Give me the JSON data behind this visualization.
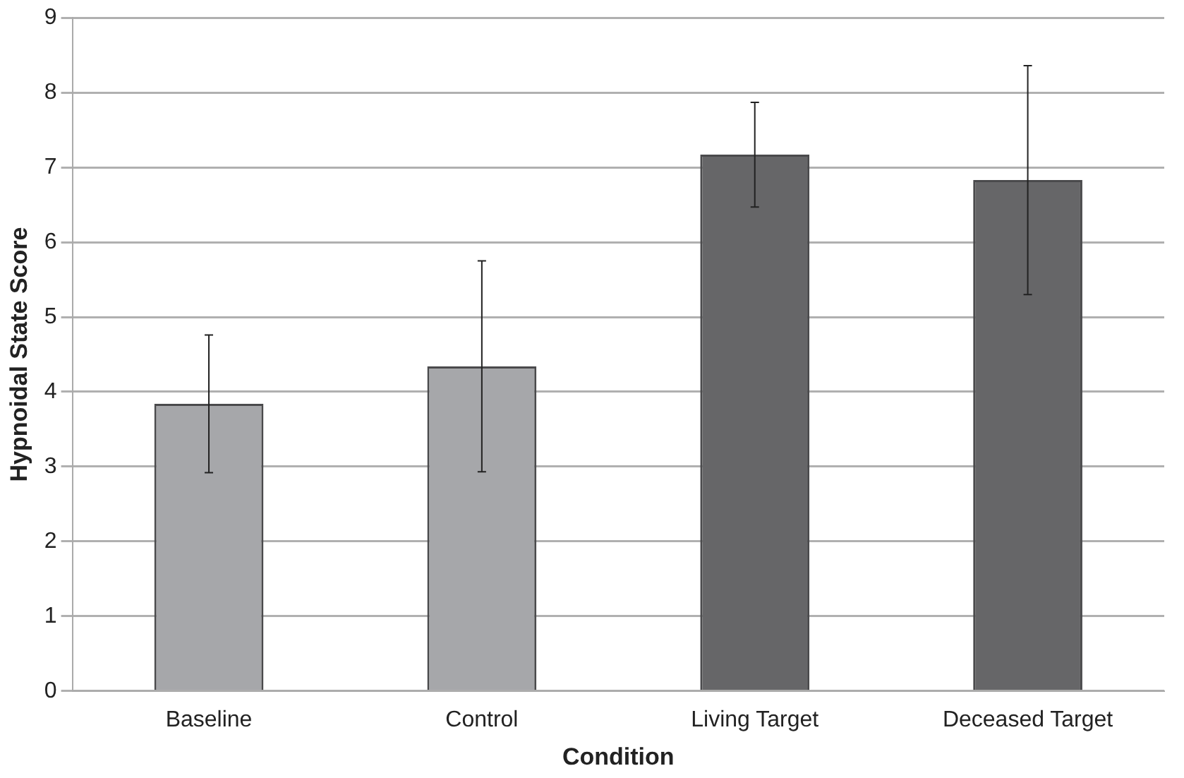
{
  "chart_data": {
    "type": "bar",
    "xlabel": "Condition",
    "ylabel": "Hypnoidal State Score",
    "categories": [
      "Baseline",
      "Control",
      "Living Target",
      "Deceased Target"
    ],
    "values": [
      3.84,
      4.34,
      7.17,
      6.83
    ],
    "colors": [
      "#a6a7aa",
      "#a6a7aa",
      "#666668",
      "#666668"
    ],
    "errors": [
      0.92,
      1.41,
      0.7,
      1.53
    ],
    "ylim": [
      0,
      9
    ],
    "yticks": [
      0,
      1,
      2,
      3,
      4,
      5,
      6,
      7,
      8,
      9
    ],
    "grid": "y",
    "legend": false
  }
}
